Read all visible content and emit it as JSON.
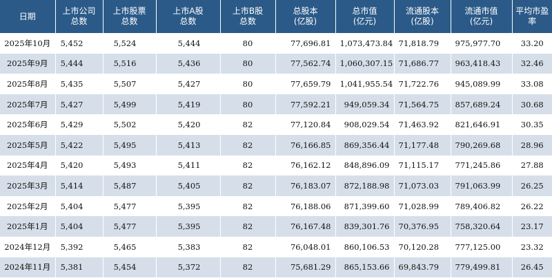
{
  "table": {
    "headers": [
      "日期",
      "上市公司\n总数",
      "上市股票\n总数",
      "上市A股\n总数",
      "上市B股\n总数",
      "总股本\n(亿股)",
      "总市值\n(亿元)",
      "流通股本\n(亿股)",
      "流通市值\n(亿元)",
      "平均市盈率"
    ],
    "rows": [
      [
        "2025年10月",
        "5,452",
        "5,524",
        "5,444",
        "80",
        "77,696.81",
        "1,073,473.84",
        "71,818.79",
        "975,977.70",
        "33.20"
      ],
      [
        "2025年9月",
        "5,444",
        "5,516",
        "5,436",
        "80",
        "77,562.74",
        "1,060,307.15",
        "71,686.77",
        "963,418.43",
        "32.46"
      ],
      [
        "2025年8月",
        "5,435",
        "5,507",
        "5,427",
        "80",
        "77,659.79",
        "1,041,955.54",
        "71,722.76",
        "945,089.99",
        "33.08"
      ],
      [
        "2025年7月",
        "5,427",
        "5,499",
        "5,419",
        "80",
        "77,592.21",
        "949,059.34",
        "71,564.75",
        "857,689.24",
        "30.68"
      ],
      [
        "2025年6月",
        "5,429",
        "5,502",
        "5,420",
        "82",
        "77,120.84",
        "908,029.54",
        "71,463.92",
        "821,646.91",
        "30.35"
      ],
      [
        "2025年5月",
        "5,422",
        "5,495",
        "5,413",
        "82",
        "76,166.85",
        "869,356.44",
        "71,177.48",
        "790,269.68",
        "28.96"
      ],
      [
        "2025年4月",
        "5,420",
        "5,493",
        "5,411",
        "82",
        "76,162.12",
        "848,896.09",
        "71,115.17",
        "771,245.86",
        "27.88"
      ],
      [
        "2025年3月",
        "5,414",
        "5,487",
        "5,405",
        "82",
        "76,183.07",
        "872,188.98",
        "71,073.03",
        "791,063.99",
        "26.25"
      ],
      [
        "2025年2月",
        "5,404",
        "5,477",
        "5,395",
        "82",
        "76,188.06",
        "871,399.60",
        "71,028.99",
        "789,406.82",
        "26.22"
      ],
      [
        "2025年1月",
        "5,404",
        "5,477",
        "5,395",
        "82",
        "76,167.48",
        "839,301.76",
        "70,376.95",
        "758,320.64",
        "23.17"
      ],
      [
        "2024年12月",
        "5,392",
        "5,465",
        "5,383",
        "82",
        "76,048.01",
        "860,106.53",
        "70,120.28",
        "777,125.00",
        "23.32"
      ],
      [
        "2024年11月",
        "5,381",
        "5,454",
        "5,372",
        "82",
        "75,681.29",
        "865,153.66",
        "69,843.79",
        "779,499.81",
        "26.45"
      ]
    ]
  },
  "colors": {
    "header_bg": "#2b5a88",
    "header_text": "#ffffff",
    "stripe": "#d6dfe9"
  }
}
